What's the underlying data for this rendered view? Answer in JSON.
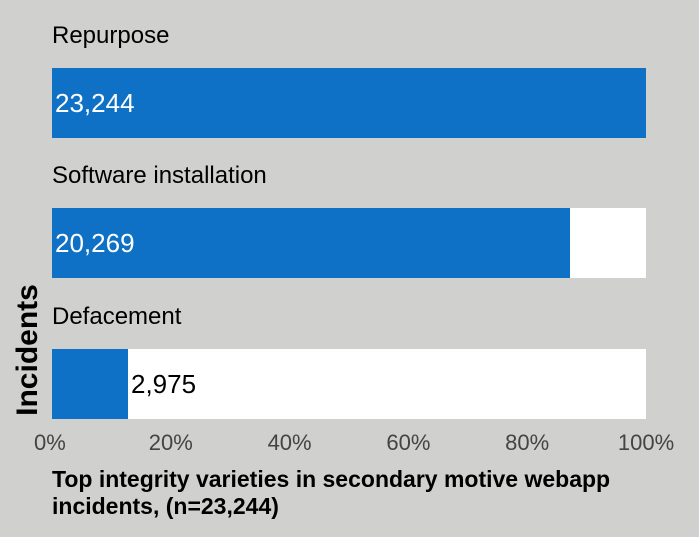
{
  "chart_data": {
    "type": "bar",
    "orientation": "horizontal",
    "title": "Top integrity varieties in secondary motive webapp incidents, (n=23,244)",
    "ylabel": "Incidents",
    "xlabel": "",
    "categories": [
      "Repurpose",
      "Software installation",
      "Defacement"
    ],
    "values": [
      23244,
      20269,
      2975
    ],
    "value_labels": [
      "23,244",
      "20,269",
      "2,975"
    ],
    "total": 23244,
    "xlim": [
      0,
      100
    ],
    "x_ticks": [
      "0%",
      "20%",
      "40%",
      "60%",
      "80%",
      "100%"
    ],
    "grid": false,
    "legend": "none",
    "colors": {
      "bar": "#0f71c6",
      "track": "#ffffff",
      "background": "#d0d0cf"
    }
  }
}
